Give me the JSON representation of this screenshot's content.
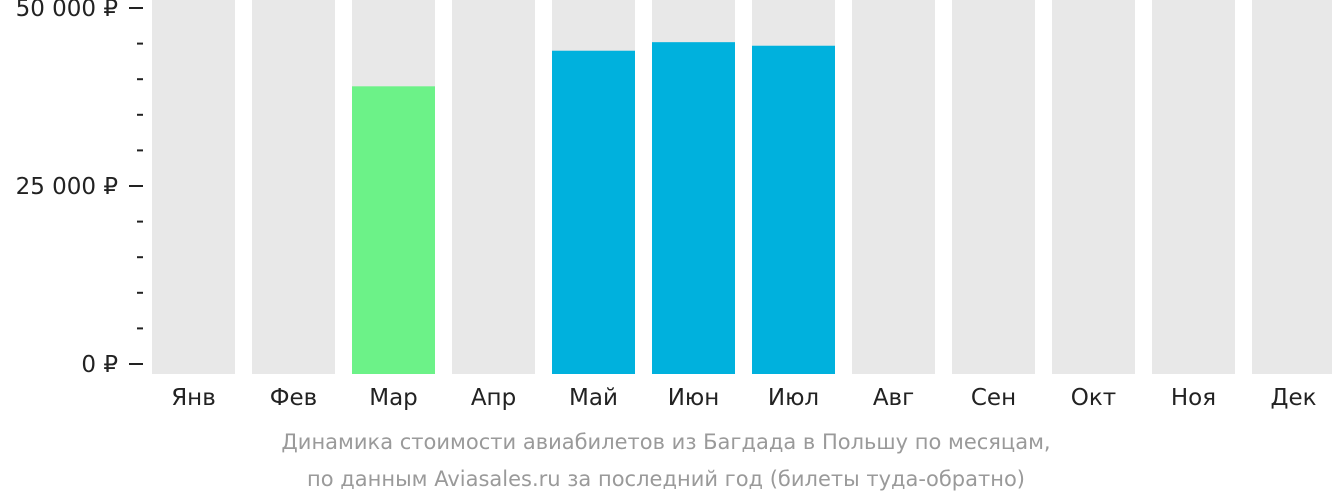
{
  "chart_data": {
    "type": "bar",
    "categories": [
      "Янв",
      "Фев",
      "Мар",
      "Апр",
      "Май",
      "Июн",
      "Июл",
      "Авг",
      "Сен",
      "Окт",
      "Ноя",
      "Дек"
    ],
    "values": [
      null,
      null,
      39000,
      null,
      44000,
      45200,
      44700,
      null,
      null,
      null,
      null,
      null
    ],
    "highlight_cheapest": "Мар",
    "ylim": [
      0,
      50000
    ],
    "y_tick_labels": [
      {
        "value": 50000,
        "label": "50 000 ₽"
      },
      {
        "value": 25000,
        "label": "25 000 ₽"
      },
      {
        "value": 0,
        "label": "0 ₽"
      }
    ],
    "y_minor_tick_step": 5000,
    "colors": {
      "background_bar": "#e8e8e8",
      "bar": "#00b1dd",
      "cheapest_bar": "#6cf288",
      "axis_text": "#222222",
      "caption": "#9a9a9a"
    }
  },
  "caption": {
    "line1": "Динамика стоимости авиабилетов из Багдада в Польшу по месяцам,",
    "line2": "по данным Aviasales.ru за последний год (билеты туда-обратно)"
  }
}
